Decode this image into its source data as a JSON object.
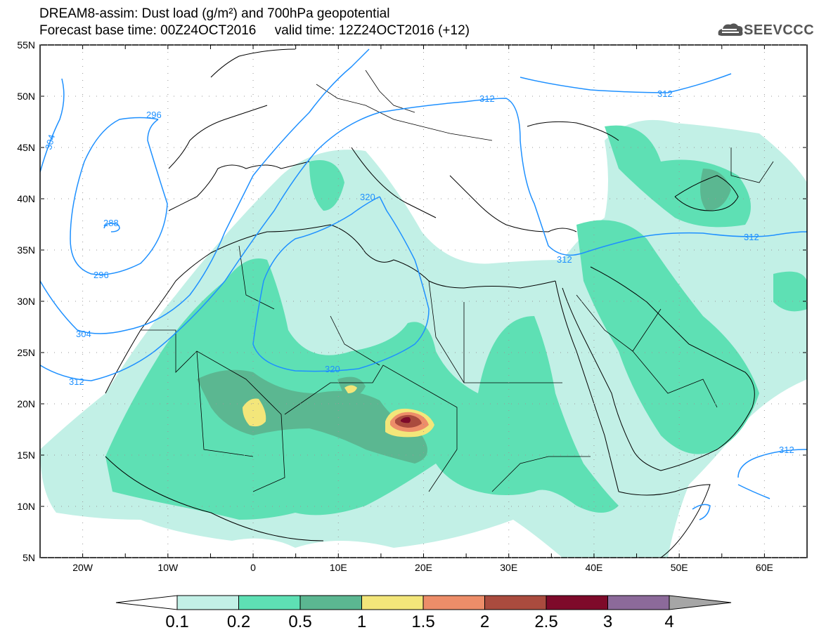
{
  "header": {
    "title_line1": "DREAM8-assim: Dust load (g/m²) and 700hPa geopotential",
    "title_line2": "Forecast base time: 00Z24OCT2016     valid time: 12Z24OCT2016 (+12)",
    "logo_text": "SEEVCCC"
  },
  "map": {
    "lon_range": [
      -25,
      65
    ],
    "lat_range": [
      5,
      55
    ],
    "lat_labels": [
      "55N",
      "50N",
      "45N",
      "40N",
      "35N",
      "30N",
      "25N",
      "20N",
      "15N",
      "10N",
      "5N"
    ],
    "lon_labels": [
      "20W",
      "10W",
      "0",
      "10E",
      "20E",
      "30E",
      "40E",
      "50E",
      "60E"
    ],
    "contour_color": "#1e90ff",
    "contour_labels": [
      "304",
      "296",
      "288",
      "296",
      "304",
      "312",
      "320",
      "312",
      "312",
      "320",
      "312",
      "312",
      "312"
    ]
  },
  "colorbar": {
    "colors": [
      "#ffffff",
      "#c2f0e6",
      "#5ee0b4",
      "#5bb791",
      "#f3e67a",
      "#ed8d69",
      "#aa4b3e",
      "#7e0a2a",
      "#8c6a9a",
      "#a6a6a6"
    ],
    "labels": [
      "0.1",
      "0.2",
      "0.5",
      "1",
      "1.5",
      "2",
      "2.5",
      "3",
      "4"
    ]
  }
}
